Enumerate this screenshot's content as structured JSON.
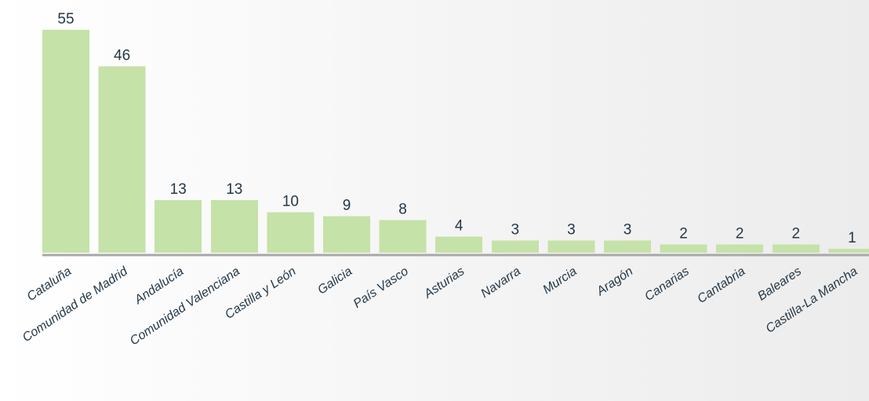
{
  "chart_data": {
    "type": "bar",
    "categories": [
      "Cataluña",
      "Comunidad de Madrid",
      "Andalucía",
      "Comunidad Valenciana",
      "Castilla y León",
      "Galicia",
      "País Vasco",
      "Asturias",
      "Navarra",
      "Murcia",
      "Aragón",
      "Canarias",
      "Cantabria",
      "Baleares",
      "Castilla-La Mancha"
    ],
    "values": [
      55,
      46,
      13,
      13,
      10,
      9,
      8,
      4,
      3,
      3,
      3,
      2,
      2,
      2,
      1
    ],
    "ylim": [
      0,
      55
    ],
    "grid": false,
    "legend": "none",
    "colors": {
      "bar": "#c5e2a8",
      "baseline": "#a8a8a8",
      "text": "#243746"
    }
  }
}
